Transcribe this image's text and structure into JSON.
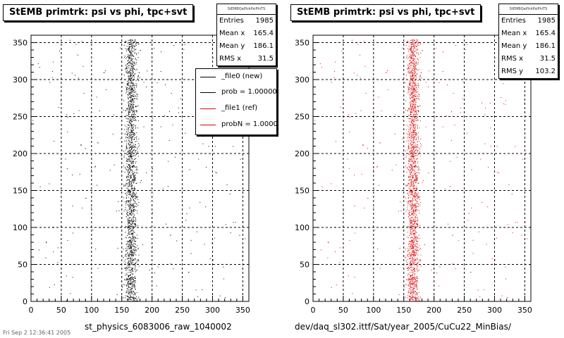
{
  "panels": [
    {
      "title": "StEMB primtrk: psi vs phi, tpc+svt",
      "stats": {
        "name": "StEMBQaPtrkPsiPhiTS",
        "rows": [
          {
            "label": "Entries",
            "value": "1985"
          },
          {
            "label": "Mean x",
            "value": "165.4"
          },
          {
            "label": "Mean y",
            "value": "186.1"
          },
          {
            "label": "RMS x",
            "value": "31.5"
          }
        ]
      },
      "legend": [
        {
          "label": "_file0 (new)",
          "color": "#000000"
        },
        {
          "label": "prob = 1.000000",
          "color": "#000000"
        },
        {
          "label": "_file1 (ref)",
          "color": "#e00000"
        },
        {
          "label": "probN = 1.000000",
          "color": "#e00000"
        }
      ],
      "xaxis_name": "st_physics_6083006_raw_1040002"
    },
    {
      "title": "StEMB primtrk: psi vs phi, tpc+svt",
      "stats": {
        "name": "StEMBQaPtrkPsiPhiTS",
        "rows": [
          {
            "label": "Entries",
            "value": "1985"
          },
          {
            "label": "Mean x",
            "value": "165.4"
          },
          {
            "label": "Mean y",
            "value": "186.1"
          },
          {
            "label": "RMS x",
            "value": "31.5"
          },
          {
            "label": "RMS y",
            "value": "103.2"
          }
        ]
      },
      "xaxis_name": "dev/daq_sl302.ittf/Sat/year_2005/CuCu22_MinBias/"
    }
  ],
  "footer_date": "Fri Sep  2 12:36:41 2005",
  "chart_data": [
    {
      "type": "scatter",
      "title": "StEMB primtrk: psi vs phi, tpc+svt",
      "marker_color": "#000000",
      "xlim": [
        0,
        360
      ],
      "ylim": [
        0,
        360
      ],
      "x_ticks": [
        0,
        50,
        100,
        150,
        200,
        250,
        300,
        350
      ],
      "y_ticks": [
        0,
        50,
        100,
        150,
        200,
        250,
        300,
        350
      ],
      "grid": true,
      "entries": 1985,
      "mean_x": 165.4,
      "mean_y": 186.1,
      "rms_x": 31.5,
      "band": {
        "x_min": 150,
        "x_max": 180,
        "y_min": 0,
        "y_max": 355
      },
      "series": [
        {
          "name": "_file0 (new)",
          "x": [
            150,
            155,
            158,
            160,
            163,
            165,
            168,
            170,
            172,
            175,
            178,
            180,
            152,
            157,
            162,
            167,
            173,
            177,
            154,
            161,
            169,
            176,
            90,
            120,
            200,
            230,
            260,
            60,
            300,
            110
          ],
          "y": [
            20,
            45,
            70,
            100,
            130,
            160,
            190,
            220,
            250,
            280,
            310,
            340,
            60,
            115,
            175,
            235,
            295,
            350,
            30,
            145,
            205,
            265,
            140,
            310,
            180,
            90,
            40,
            250,
            330,
            215
          ]
        }
      ]
    },
    {
      "type": "scatter",
      "title": "StEMB primtrk: psi vs phi, tpc+svt",
      "marker_color": "#e00000",
      "xlim": [
        0,
        360
      ],
      "ylim": [
        0,
        360
      ],
      "x_ticks": [
        0,
        50,
        100,
        150,
        200,
        250,
        300,
        350
      ],
      "y_ticks": [
        0,
        50,
        100,
        150,
        200,
        250,
        300,
        350
      ],
      "grid": true,
      "entries": 1985,
      "mean_x": 165.4,
      "mean_y": 186.1,
      "rms_x": 31.5,
      "rms_y": 103.2,
      "band": {
        "x_min": 150,
        "x_max": 180,
        "y_min": 0,
        "y_max": 355
      },
      "series": [
        {
          "name": "_file1 (ref)",
          "x": [
            150,
            155,
            158,
            160,
            163,
            165,
            168,
            170,
            172,
            175,
            178,
            180,
            152,
            157,
            162,
            167,
            173,
            177,
            154,
            161,
            169,
            176,
            90,
            120,
            200,
            230,
            260,
            60,
            300,
            110
          ],
          "y": [
            20,
            45,
            70,
            100,
            130,
            160,
            190,
            220,
            250,
            280,
            310,
            340,
            60,
            115,
            175,
            235,
            295,
            350,
            30,
            145,
            205,
            265,
            140,
            310,
            180,
            90,
            40,
            250,
            330,
            215
          ]
        }
      ]
    }
  ]
}
